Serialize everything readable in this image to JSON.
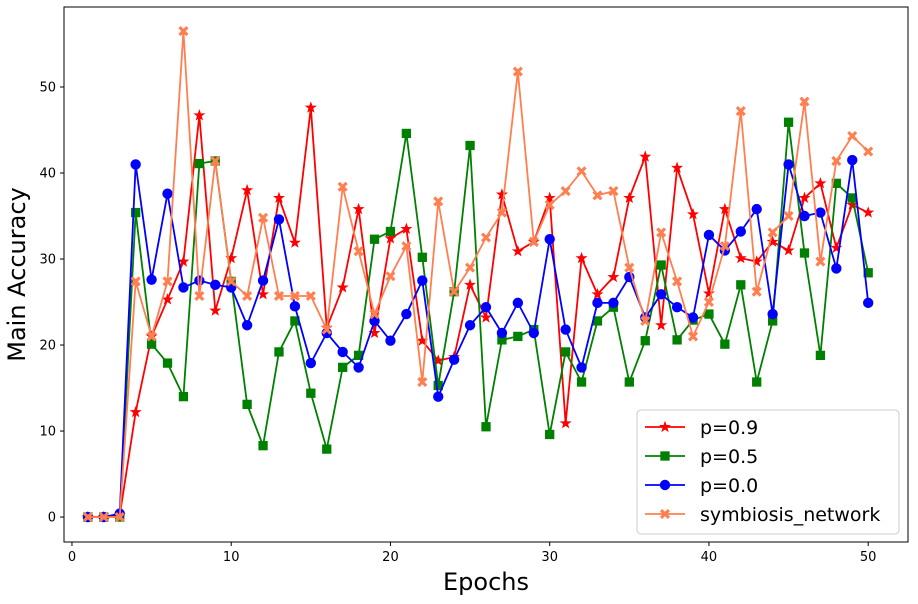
{
  "chart_data": {
    "type": "line",
    "xlabel": "Epochs",
    "ylabel": "Main Accuracy",
    "xlim": [
      -0.5,
      52.5
    ],
    "ylim": [
      -2.9,
      59.3
    ],
    "xticks": [
      0,
      10,
      20,
      30,
      40,
      50
    ],
    "yticks": [
      0,
      10,
      20,
      30,
      40,
      50
    ],
    "legend_location": "lower-right",
    "x": [
      1,
      2,
      3,
      4,
      5,
      6,
      7,
      8,
      9,
      10,
      11,
      12,
      13,
      14,
      15,
      16,
      17,
      18,
      19,
      20,
      21,
      22,
      23,
      24,
      25,
      26,
      27,
      28,
      29,
      30,
      31,
      32,
      33,
      34,
      35,
      36,
      37,
      38,
      39,
      40,
      41,
      42,
      43,
      44,
      45,
      46,
      47,
      48,
      49,
      50
    ],
    "series": [
      {
        "name": "p=0.9",
        "color": "#ff0000",
        "marker": "star",
        "values": [
          0,
          0,
          0.2,
          12.2,
          21.0,
          25.3,
          29.7,
          46.7,
          24.0,
          30.1,
          38.0,
          25.9,
          37.1,
          31.9,
          47.6,
          22.0,
          26.7,
          35.8,
          21.4,
          32.4,
          33.5,
          20.5,
          18.2,
          18.6,
          27.0,
          23.2,
          37.5,
          30.9,
          32.0,
          37.1,
          10.9,
          30.1,
          25.9,
          27.9,
          37.1,
          41.9,
          22.3,
          40.6,
          35.2,
          26.0,
          35.8,
          30.1,
          29.7,
          32.0,
          31.0,
          37.1,
          38.8,
          31.3,
          36.3,
          35.4
        ]
      },
      {
        "name": "p=0.5",
        "color": "#008000",
        "marker": "square",
        "values": [
          0,
          0,
          0,
          35.4,
          20.1,
          17.9,
          14.0,
          41.1,
          41.4,
          27.4,
          13.1,
          8.3,
          19.2,
          22.8,
          14.4,
          7.9,
          17.4,
          18.8,
          32.3,
          33.2,
          44.6,
          30.2,
          15.3,
          26.2,
          43.2,
          10.5,
          20.6,
          21.0,
          21.8,
          9.6,
          19.2,
          15.7,
          22.8,
          24.4,
          15.7,
          20.5,
          29.3,
          20.6,
          22.9,
          23.6,
          20.1,
          27.0,
          15.7,
          22.8,
          45.9,
          30.7,
          18.8,
          38.8,
          37.1,
          28.4
        ]
      },
      {
        "name": "p=0.0",
        "color": "#0000ff",
        "marker": "circle",
        "values": [
          0,
          0,
          0.4,
          41.0,
          27.6,
          37.6,
          26.7,
          27.5,
          27.0,
          26.7,
          22.3,
          27.5,
          34.6,
          24.5,
          17.9,
          21.4,
          19.2,
          17.4,
          22.8,
          20.5,
          23.6,
          27.5,
          14.0,
          18.3,
          22.3,
          24.4,
          21.4,
          24.9,
          21.4,
          32.3,
          21.8,
          17.4,
          24.9,
          24.9,
          27.9,
          23.2,
          25.9,
          24.4,
          23.2,
          32.8,
          31.0,
          33.2,
          35.8,
          23.6,
          41.0,
          35.0,
          35.4,
          28.9,
          41.5,
          24.9
        ]
      },
      {
        "name": "symbiosis_network",
        "color": "#ff7f50",
        "marker": "x",
        "values": [
          0,
          0,
          0,
          27.4,
          21.0,
          27.4,
          56.5,
          25.7,
          41.4,
          27.4,
          25.7,
          34.8,
          25.7,
          25.7,
          25.7,
          21.8,
          38.4,
          30.9,
          23.6,
          28.0,
          31.5,
          15.7,
          36.7,
          26.2,
          29.0,
          32.5,
          35.4,
          51.8,
          32.0,
          36.3,
          37.9,
          40.2,
          37.4,
          37.9,
          29.0,
          22.8,
          33.1,
          27.4,
          21.0,
          25.0,
          31.5,
          47.2,
          26.2,
          33.1,
          35.0,
          48.3,
          29.7,
          41.4,
          44.3,
          42.5
        ]
      }
    ]
  }
}
